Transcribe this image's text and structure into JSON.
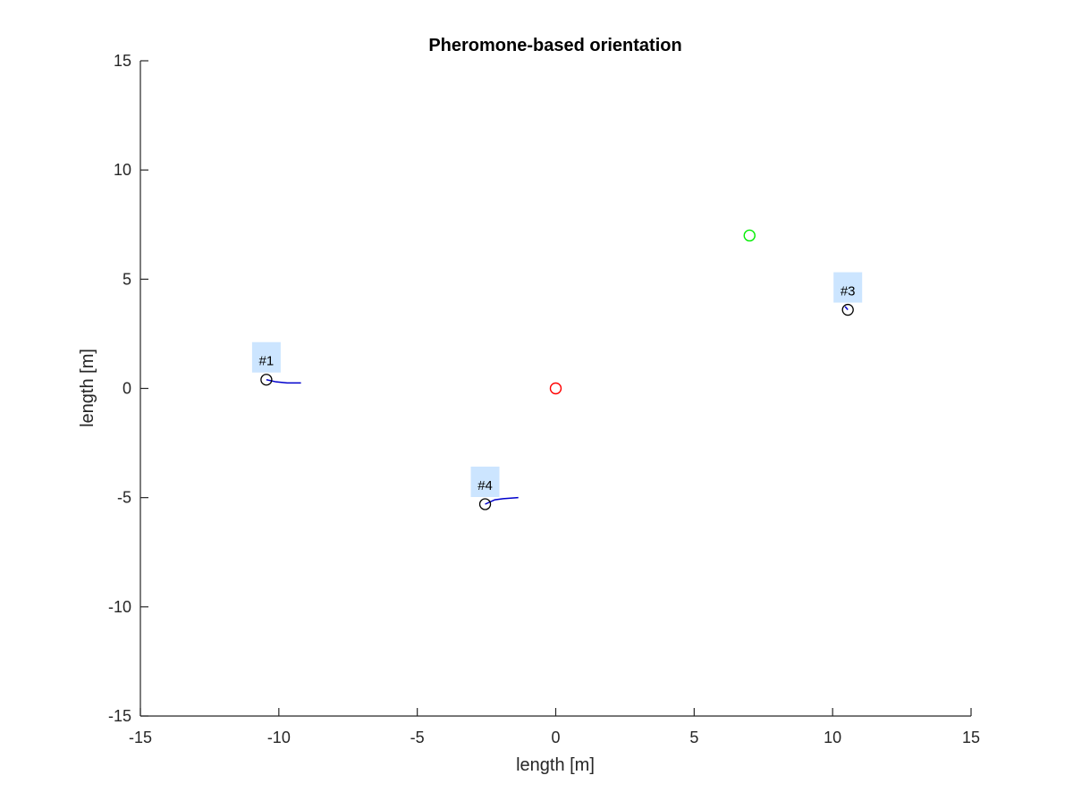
{
  "chart_data": {
    "type": "scatter",
    "title": "Pheromone-based orientation",
    "xlabel": "length [m]",
    "ylabel": "length [m]",
    "xlim": [
      -15,
      15
    ],
    "ylim": [
      -15,
      15
    ],
    "xticks": [
      -15,
      -10,
      -5,
      0,
      5,
      10,
      15
    ],
    "yticks": [
      -15,
      -10,
      -5,
      0,
      5,
      10,
      15
    ],
    "xtick_labels": [
      "-15",
      "-10",
      "-5",
      "0",
      "5",
      "10",
      "15"
    ],
    "ytick_labels": [
      "-15",
      "-10",
      "-5",
      "0",
      "5",
      "10",
      "15"
    ],
    "grid": false,
    "box": false,
    "markers": [
      {
        "x": 0,
        "y": 0,
        "color": "#ff0000"
      },
      {
        "x": 7,
        "y": 7,
        "color": "#00ee00"
      }
    ],
    "agents": [
      {
        "label": "#1",
        "x": -10.45,
        "y": 0.4,
        "trail": [
          [
            -10.45,
            0.4
          ],
          [
            -10.1,
            0.3
          ],
          [
            -9.7,
            0.25
          ],
          [
            -9.2,
            0.25
          ]
        ]
      },
      {
        "label": "#3",
        "x": 10.55,
        "y": 3.6,
        "trail": [
          [
            10.55,
            3.6
          ],
          [
            10.45,
            3.75
          ]
        ]
      },
      {
        "label": "#4",
        "x": -2.55,
        "y": -5.3,
        "trail": [
          [
            -2.55,
            -5.3
          ],
          [
            -2.2,
            -5.1
          ],
          [
            -1.9,
            -5.05
          ],
          [
            -1.35,
            -5.0
          ]
        ]
      }
    ],
    "agent_marker_color": "#000000",
    "trail_color": "#0000cc",
    "label_background": "#cce5ff",
    "axis_color": "#262626"
  }
}
